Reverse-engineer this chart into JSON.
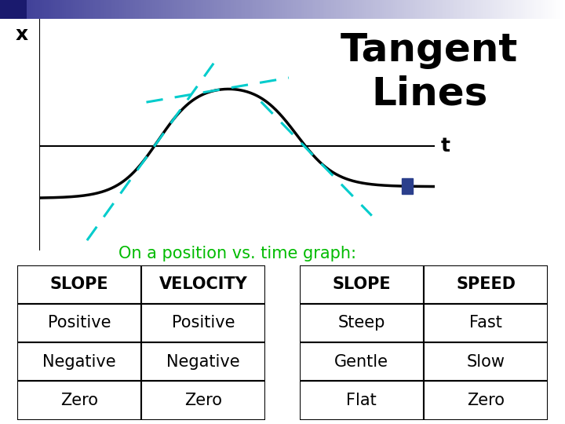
{
  "title": "Tangent\nLines",
  "title_fontsize": 36,
  "x_label": "x",
  "t_label": "t",
  "subtitle": "On a position vs. time graph:",
  "subtitle_color": "#00bb00",
  "subtitle_fontsize": 15,
  "table1_headers": [
    "SLOPE",
    "VELOCITY"
  ],
  "table1_rows": [
    [
      "Positive",
      "Positive"
    ],
    [
      "Negative",
      "Negative"
    ],
    [
      "Zero",
      "Zero"
    ]
  ],
  "table2_headers": [
    "SLOPE",
    "SPEED"
  ],
  "table2_rows": [
    [
      "Steep",
      "Fast"
    ],
    [
      "Gentle",
      "Slow"
    ],
    [
      "Flat",
      "Zero"
    ]
  ],
  "curve_color": "#000000",
  "tangent_color": "#00cccc",
  "square_color": "#2b3f8c",
  "table_fontsize": 15,
  "header_fontsize": 15
}
